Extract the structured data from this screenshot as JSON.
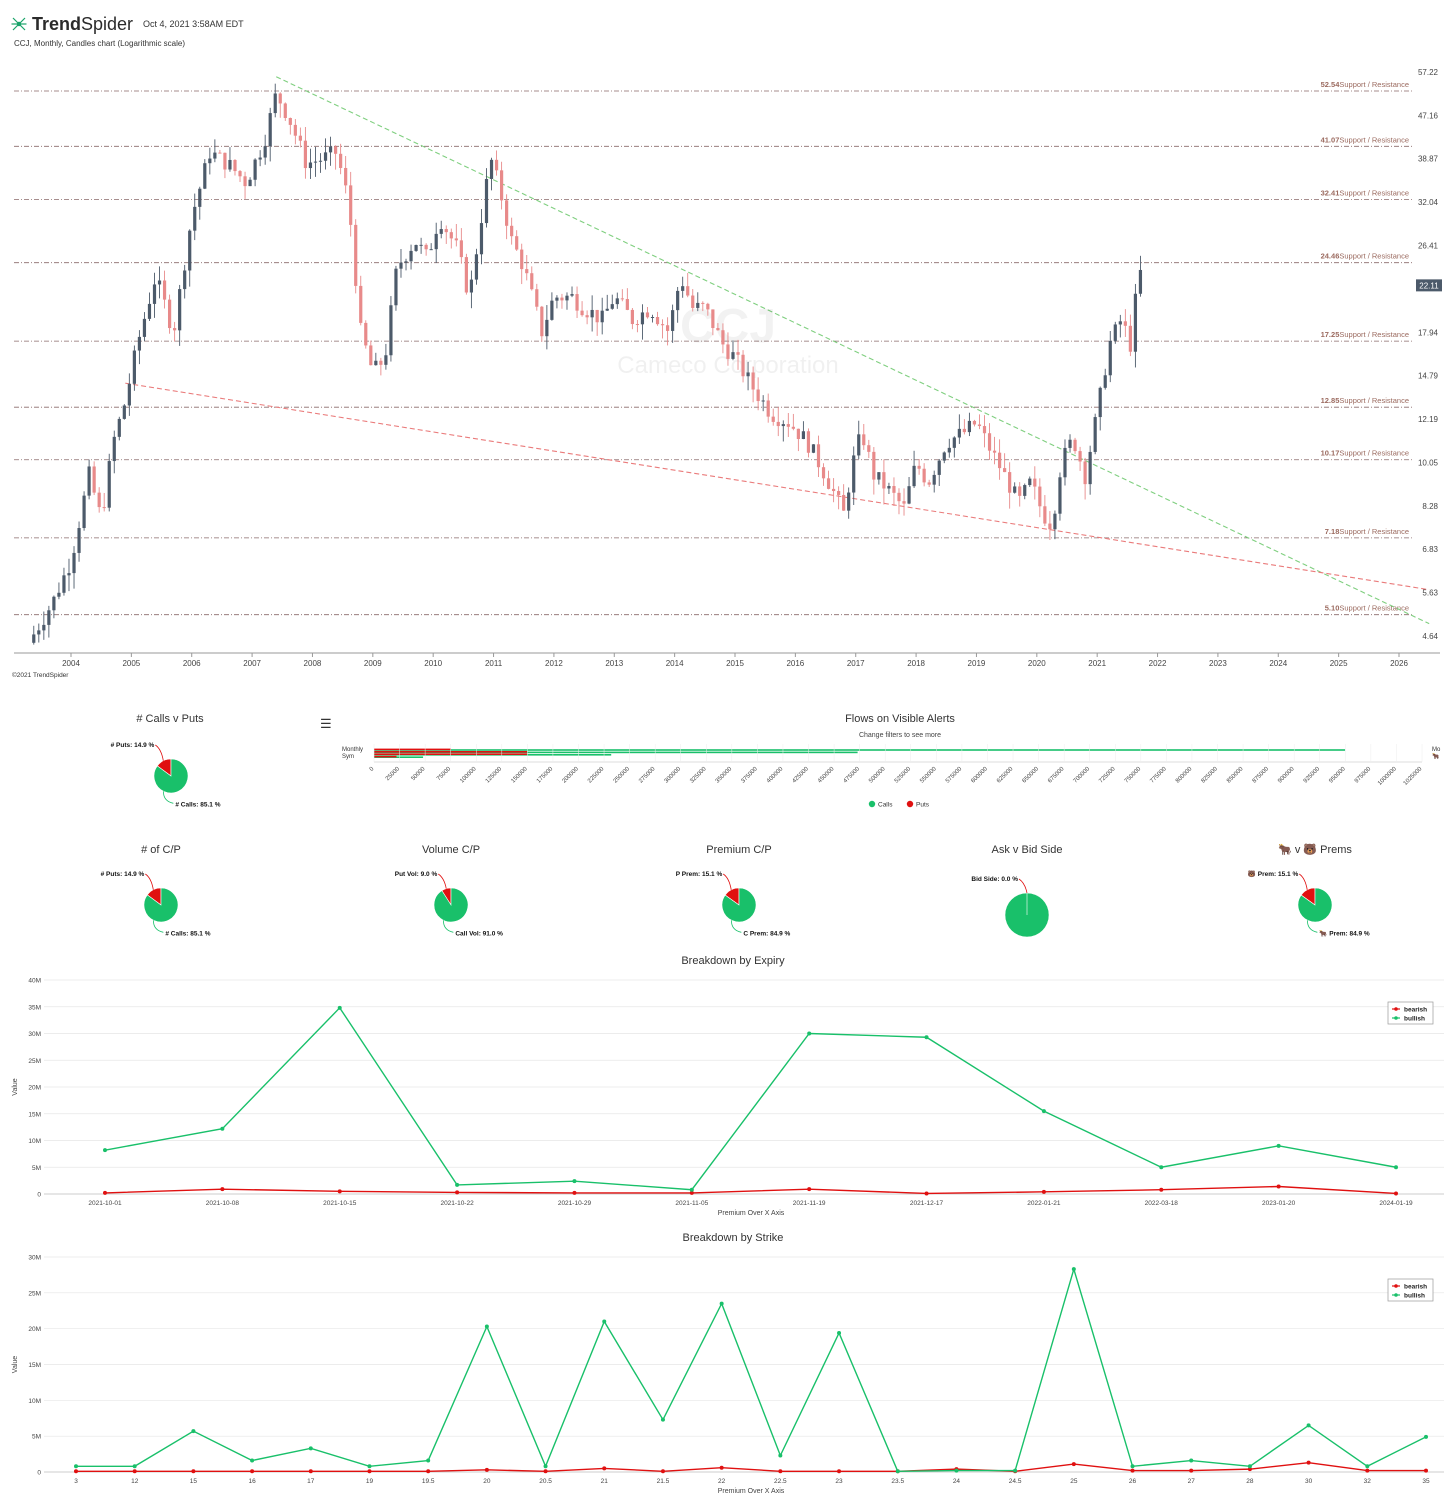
{
  "header": {
    "brand": "TrendSpider",
    "brand_bold": "Trend",
    "brand_thin": "Spider",
    "datetime": "Oct 4, 2021 3:58AM EDT",
    "subtitle": "CCJ, Monthly, Candles chart (Logarithmic scale)",
    "copyright": "©2021 TrendSpider",
    "logo_icon": "trendspider-web-icon"
  },
  "colors": {
    "up": "#4c5a6a",
    "down": "#e88a8a",
    "calls": "#19c06a",
    "puts": "#e01010",
    "support": "#9b6a5f",
    "trend_green": "#7fcf7f",
    "trend_red": "#ea7b7b"
  },
  "chart_data": [
    {
      "type": "candlestick",
      "title": "CCJ, Monthly, Candles chart (Logarithmic scale)",
      "watermark": "CCJ",
      "watermark_sub": "Cameco Corporation",
      "y_scale": "log",
      "y_ticks": [
        "57.22",
        "47.16",
        "38.87",
        "32.04",
        "26.41",
        "17.94",
        "14.79",
        "12.19",
        "10.05",
        "8.28",
        "6.83",
        "5.63",
        "4.64"
      ],
      "x_ticks": [
        "2004",
        "2005",
        "2006",
        "2007",
        "2008",
        "2009",
        "2010",
        "2011",
        "2012",
        "2013",
        "2014",
        "2015",
        "2016",
        "2017",
        "2018",
        "2019",
        "2020",
        "2021",
        "2022",
        "2023",
        "2024",
        "2025",
        "2026"
      ],
      "last_price": "22.11",
      "support_resistance": [
        {
          "value": "52.54",
          "label": "Support / Resistance"
        },
        {
          "value": "41.07",
          "label": "Support / Resistance"
        },
        {
          "value": "32.41",
          "label": "Support / Resistance"
        },
        {
          "value": "24.46",
          "label": "Support / Resistance"
        },
        {
          "value": "17.25",
          "label": "Support / Resistance"
        },
        {
          "value": "12.85",
          "label": "Support / Resistance"
        },
        {
          "value": "10.17",
          "label": "Support / Resistance"
        },
        {
          "value": "7.18",
          "label": "Support / Resistance"
        },
        {
          "value": "5.10",
          "label": "Support / Resistance"
        }
      ],
      "trendlines": [
        {
          "name": "descending resistance",
          "color": "green",
          "from": [
            2007.4,
            56.0
          ],
          "to": [
            2026.5,
            4.9
          ]
        },
        {
          "name": "descending support",
          "color": "red",
          "from": [
            2004.9,
            14.3
          ],
          "to": [
            2026.5,
            5.7
          ]
        }
      ]
    },
    {
      "type": "pie",
      "title": "# Calls v Puts",
      "slices": [
        {
          "label": "# Puts",
          "value": 14.9,
          "text": "# Puts: 14.9 %"
        },
        {
          "label": "# Calls",
          "value": 85.1,
          "text": "# Calls: 85.1 %"
        }
      ]
    },
    {
      "type": "bar",
      "orientation": "horizontal",
      "title": "Flows on Visible Alerts",
      "subtitle": "Change filters to see more",
      "x_ticks": [
        "0",
        "25000",
        "50000",
        "75000",
        "100000",
        "125000",
        "150000",
        "175000",
        "200000",
        "225000",
        "250000",
        "275000",
        "300000",
        "325000",
        "350000",
        "375000",
        "400000",
        "425000",
        "450000",
        "475000",
        "500000",
        "525000",
        "550000",
        "575000",
        "600000",
        "625000",
        "650000",
        "675000",
        "700000",
        "725000",
        "750000",
        "775000",
        "800000",
        "825000",
        "850000",
        "875000",
        "900000",
        "925000",
        "950000",
        "975000",
        "1000000",
        "1025000"
      ],
      "row_labels": [
        "Monthly",
        "Sym"
      ],
      "right_label": "Mo",
      "legend": [
        "Calls",
        "Puts"
      ],
      "series": [
        {
          "name": "Calls",
          "values": [
            950000,
            473000,
            232000,
            48000
          ]
        },
        {
          "name": "Puts",
          "values": [
            75000,
            150000,
            150000,
            22000
          ]
        }
      ]
    },
    {
      "type": "pie",
      "title": "# of C/P",
      "slices": [
        {
          "label": "# Puts",
          "value": 14.9,
          "text": "# Puts: 14.9 %"
        },
        {
          "label": "# Calls",
          "value": 85.1,
          "text": "# Calls: 85.1 %"
        }
      ]
    },
    {
      "type": "pie",
      "title": "Volume C/P",
      "slices": [
        {
          "label": "Put Vol",
          "value": 9.0,
          "text": "Put Vol: 9.0 %"
        },
        {
          "label": "Call Vol",
          "value": 91.0,
          "text": "Call Vol: 91.0 %"
        }
      ]
    },
    {
      "type": "pie",
      "title": "Premium C/P",
      "slices": [
        {
          "label": "P Prem",
          "value": 15.1,
          "text": "P Prem: 15.1 %"
        },
        {
          "label": "C Prem",
          "value": 84.9,
          "text": "C Prem: 84.9 %"
        }
      ]
    },
    {
      "type": "pie",
      "title": "Ask v Bid Side",
      "slices": [
        {
          "label": "Bid Side",
          "value": 0.0,
          "text": "Bid Side: 0.0 %"
        },
        {
          "label": "Ask Side",
          "value": 100.0,
          "text": ""
        }
      ]
    },
    {
      "type": "pie",
      "title": "🐂 v 🐻 Prems",
      "slices": [
        {
          "label": "🐻 Prem",
          "value": 15.1,
          "text": "🐻 Prem: 15.1 %"
        },
        {
          "label": "🐂 Prem",
          "value": 84.9,
          "text": "🐂 Prem: 84.9 %"
        }
      ]
    },
    {
      "type": "line",
      "title": "Breakdown by Expiry",
      "xlabel": "Premium Over X Axis",
      "ylabel": "Value",
      "categories": [
        "2021-10-01",
        "2021-10-08",
        "2021-10-15",
        "2021-10-22",
        "2021-10-29",
        "2021-11-05",
        "2021-11-19",
        "2021-12-17",
        "2022-01-21",
        "2022-03-18",
        "2023-01-20",
        "2024-01-19"
      ],
      "y_ticks": [
        "0",
        "5M",
        "10M",
        "15M",
        "20M",
        "25M",
        "30M",
        "35M",
        "40M"
      ],
      "ylim": [
        0,
        40000000
      ],
      "legend_position": "top-right",
      "series": [
        {
          "name": "bearish",
          "values": [
            200000,
            900000,
            500000,
            300000,
            200000,
            200000,
            900000,
            100000,
            400000,
            800000,
            1400000,
            100000
          ]
        },
        {
          "name": "bullish",
          "values": [
            8200000,
            12200000,
            34800000,
            1700000,
            2400000,
            800000,
            30000000,
            29300000,
            15500000,
            5000000,
            9000000,
            5000000
          ]
        }
      ]
    },
    {
      "type": "line",
      "title": "Breakdown by Strike",
      "xlabel": "Premium Over X Axis",
      "ylabel": "Value",
      "categories": [
        "3",
        "12",
        "15",
        "16",
        "17",
        "19",
        "19.5",
        "20",
        "20.5",
        "21",
        "21.5",
        "22",
        "22.5",
        "23",
        "23.5",
        "24",
        "24.5",
        "25",
        "26",
        "27",
        "28",
        "30",
        "32",
        "35"
      ],
      "y_ticks": [
        "0",
        "5M",
        "10M",
        "15M",
        "20M",
        "25M",
        "30M"
      ],
      "ylim": [
        0,
        30000000
      ],
      "legend_position": "top-right",
      "series": [
        {
          "name": "bearish",
          "values": [
            100000,
            100000,
            100000,
            100000,
            100000,
            100000,
            100000,
            300000,
            100000,
            500000,
            100000,
            600000,
            100000,
            100000,
            100000,
            400000,
            100000,
            1100000,
            200000,
            200000,
            400000,
            1300000,
            200000,
            200000
          ]
        },
        {
          "name": "bullish",
          "values": [
            800000,
            800000,
            5700000,
            1600000,
            3300000,
            800000,
            1600000,
            20300000,
            800000,
            21000000,
            7300000,
            23500000,
            2300000,
            19400000,
            100000,
            200000,
            200000,
            28300000,
            800000,
            1600000,
            800000,
            6500000,
            800000,
            4900000
          ]
        }
      ]
    }
  ]
}
